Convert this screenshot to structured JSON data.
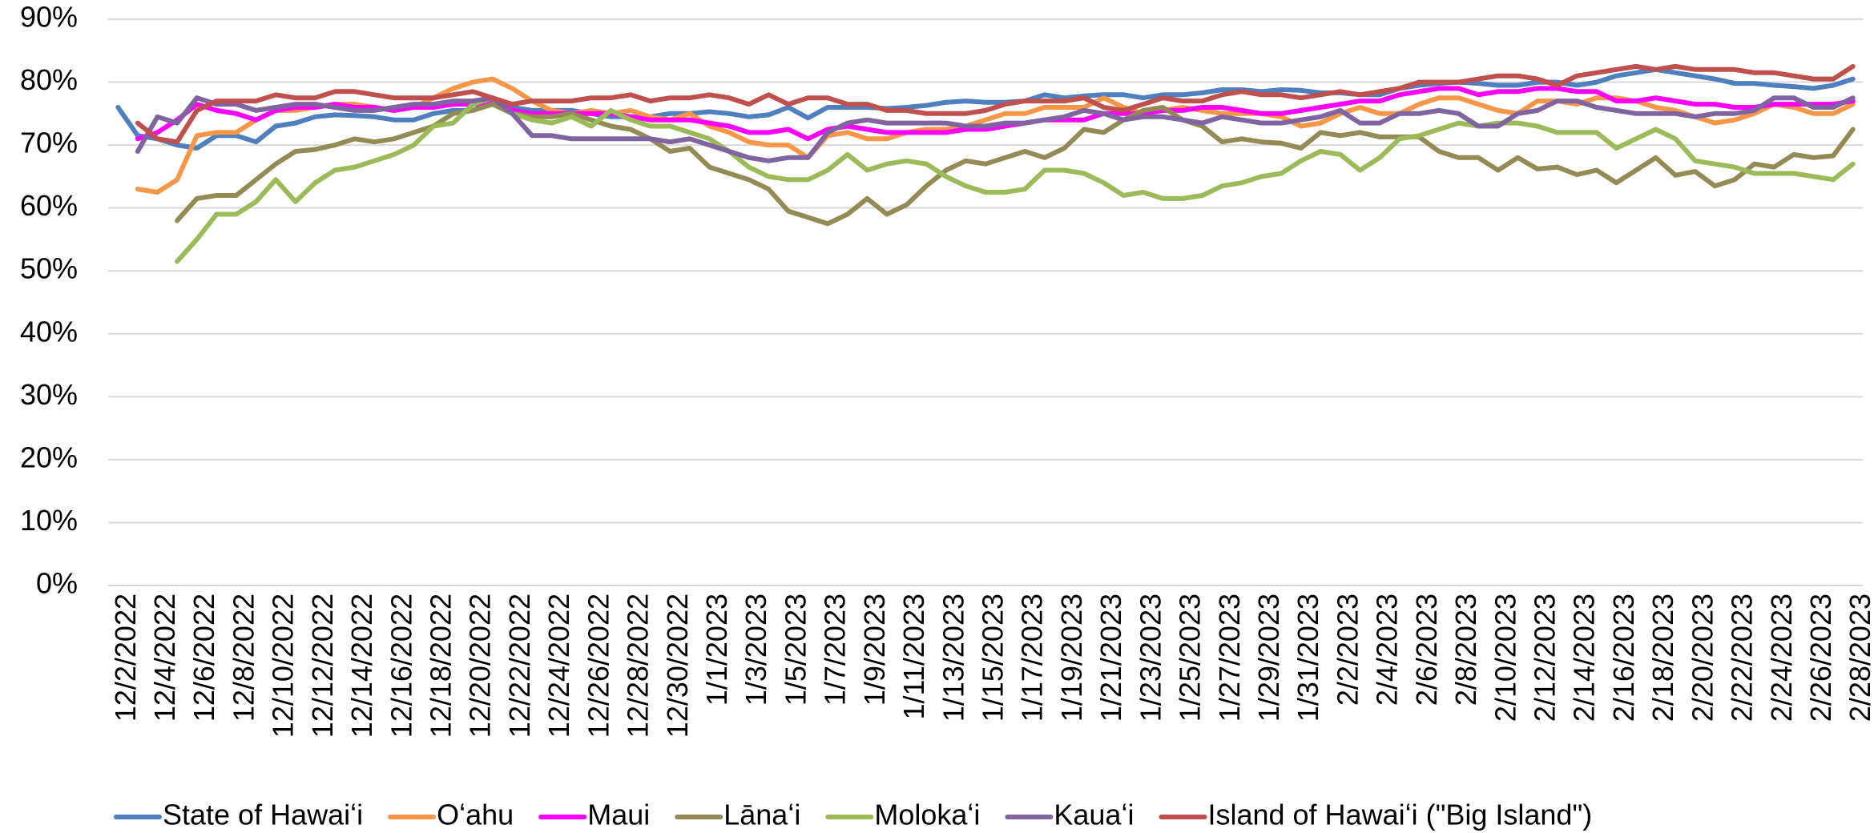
{
  "chart_data": {
    "type": "line",
    "categories": [
      "12/2/2022",
      null,
      "12/4/2022",
      null,
      "12/6/2022",
      null,
      "12/8/2022",
      null,
      "12/10/2022",
      null,
      "12/12/2022",
      null,
      "12/14/2022",
      null,
      "12/16/2022",
      null,
      "12/18/2022",
      null,
      "12/20/2022",
      null,
      "12/22/2022",
      null,
      "12/24/2022",
      null,
      "12/26/2022",
      null,
      "12/28/2022",
      null,
      "12/30/2022",
      null,
      "1/1/2023",
      null,
      "1/3/2023",
      null,
      "1/5/2023",
      null,
      "1/7/2023",
      null,
      "1/9/2023",
      null,
      "1/11/2023",
      null,
      "1/13/2023",
      null,
      "1/15/2023",
      null,
      "1/17/2023",
      null,
      "1/19/2023",
      null,
      "1/21/2023",
      null,
      "1/23/2023",
      null,
      "1/25/2023",
      null,
      "1/27/2023",
      null,
      "1/29/2023",
      null,
      "1/31/2023",
      null,
      "2/2/2023",
      null,
      "2/4/2023",
      null,
      "2/6/2023",
      null,
      "2/8/2023",
      null,
      "2/10/2023",
      null,
      "2/12/2023",
      null,
      "2/14/2023",
      null,
      "2/16/2023",
      null,
      "2/18/2023",
      null,
      "2/20/2023",
      null,
      "2/22/2023",
      null,
      "2/24/2023",
      null,
      "2/26/2023",
      null,
      "2/28/2023"
    ],
    "series": [
      {
        "name": "State of Hawaiʻi",
        "color": "#4e7fbf",
        "values": [
          76,
          71.5,
          71,
          70,
          69.5,
          71.5,
          71.5,
          70.5,
          73,
          73.5,
          74.5,
          74.8,
          74.7,
          74.5,
          74,
          74,
          75,
          75.5,
          75.5,
          77,
          76,
          75.5,
          75.5,
          75.5,
          75,
          74.5,
          74.5,
          74.5,
          75,
          75,
          75.3,
          75,
          74.5,
          74.8,
          76,
          74.3,
          76,
          76,
          76,
          75.8,
          76,
          76.3,
          76.8,
          77,
          76.8,
          76.8,
          77,
          78,
          77.5,
          77.8,
          78,
          78,
          77.5,
          78,
          78,
          78.3,
          78.8,
          78.8,
          78.5,
          78.8,
          78.7,
          78.3,
          78.3,
          78,
          78,
          79,
          79.5,
          79.8,
          80,
          79.8,
          79.5,
          79.5,
          80,
          80,
          79.5,
          80,
          81,
          81.5,
          82,
          81.5,
          81,
          80.5,
          79.8,
          79.8,
          79.5,
          79.3,
          79,
          79.5,
          80.5
        ]
      },
      {
        "name": "Oʻahu",
        "color": "#f79646",
        "values": [
          null,
          63,
          62.5,
          64.5,
          71.5,
          72,
          72,
          74,
          75.5,
          75.5,
          76,
          76.5,
          76.5,
          76,
          75.5,
          76,
          77.5,
          79,
          80,
          80.5,
          79,
          77,
          75.5,
          75,
          75.5,
          75,
          75.5,
          74.5,
          74,
          75,
          73,
          72,
          70.5,
          70,
          70,
          68,
          71.5,
          72,
          71,
          71,
          72,
          72.5,
          72.5,
          73,
          74,
          75,
          75,
          76,
          76,
          76,
          77.5,
          76,
          75,
          75.5,
          76,
          75.5,
          75,
          75,
          75,
          74.5,
          73,
          73.5,
          75,
          76,
          75,
          75,
          76.5,
          77.5,
          77.5,
          76.5,
          75.5,
          75,
          77,
          77,
          76.5,
          77.5,
          77.5,
          77,
          76,
          75.5,
          74.5,
          73.5,
          74,
          75,
          76.5,
          76,
          75,
          75,
          76.5
        ]
      },
      {
        "name": "Maui",
        "color": "#ff00ff",
        "values": [
          null,
          71,
          72,
          74,
          76.5,
          75.5,
          75,
          74,
          75.5,
          76,
          76,
          76.5,
          76,
          76,
          75.5,
          76,
          76,
          76.5,
          76.5,
          77,
          75.5,
          75,
          75,
          75,
          75,
          75,
          74.5,
          74,
          74,
          74,
          73.5,
          73,
          72,
          72,
          72.5,
          71,
          72.5,
          73,
          72.5,
          72,
          72,
          72,
          72,
          72.5,
          72.5,
          73,
          73.5,
          74,
          74,
          74,
          75,
          75,
          75,
          75.5,
          75.5,
          76,
          76,
          75.5,
          75,
          75,
          75.5,
          76,
          76.5,
          77,
          77,
          78,
          78.5,
          79,
          79,
          78,
          78.5,
          78.5,
          79,
          79,
          78.5,
          78.5,
          77,
          77,
          77.5,
          77,
          76.5,
          76.5,
          76,
          76,
          76.5,
          76.5,
          76.5,
          76.5,
          77
        ]
      },
      {
        "name": "Lānaʻi",
        "color": "#948a54",
        "values": [
          null,
          null,
          null,
          58,
          61.5,
          62,
          62,
          64.5,
          67,
          69,
          69.3,
          70,
          71,
          70.5,
          71,
          72,
          73,
          75,
          75.5,
          76.5,
          75,
          74.5,
          74.5,
          75,
          74,
          73,
          72.5,
          71,
          69,
          69.5,
          66.5,
          65.5,
          64.5,
          63,
          59.5,
          58.5,
          57.5,
          59,
          61.5,
          59,
          60.5,
          63.5,
          66,
          67.5,
          67,
          68,
          69,
          68,
          69.5,
          72.5,
          72,
          74,
          75.5,
          76,
          74,
          73,
          70.5,
          71,
          70.5,
          70.3,
          69.5,
          72,
          71.5,
          72,
          71.3,
          71.3,
          71.3,
          69,
          68,
          68,
          66,
          68,
          66.2,
          66.5,
          65.3,
          66,
          64,
          66,
          68,
          65.2,
          65.8,
          63.5,
          64.5,
          67,
          66.5,
          68.5,
          68,
          68.3,
          72.5
        ]
      },
      {
        "name": "Molokaʻi",
        "color": "#9bbb59",
        "values": [
          null,
          null,
          null,
          51.5,
          55,
          59,
          59,
          61,
          64.5,
          61,
          64,
          66,
          66.5,
          67.5,
          68.5,
          70,
          73,
          73.5,
          76.5,
          77.5,
          75,
          74,
          73.5,
          74.5,
          73,
          75.5,
          74,
          73,
          73,
          72,
          71,
          69,
          66.5,
          65,
          64.5,
          64.5,
          66,
          68.5,
          66,
          67,
          67.5,
          67,
          65,
          63.5,
          62.5,
          62.5,
          63,
          66,
          66,
          65.5,
          64,
          62,
          62.5,
          61.5,
          61.5,
          62,
          63.5,
          64,
          65,
          65.5,
          67.5,
          69,
          68.5,
          66,
          68,
          71,
          71.5,
          72.5,
          73.5,
          73,
          73.5,
          73.5,
          73,
          72,
          72,
          72,
          69.5,
          71,
          72.5,
          71,
          67.5,
          67,
          66.5,
          65.5,
          65.5,
          65.5,
          65,
          64.5,
          67
        ]
      },
      {
        "name": "Kauaʻi",
        "color": "#8064a2",
        "values": [
          null,
          69,
          74.5,
          73.5,
          77.5,
          76.5,
          76.5,
          75.5,
          76,
          76.5,
          76.5,
          76,
          75.5,
          75.5,
          76,
          76.5,
          76.5,
          77,
          77,
          77.5,
          75,
          71.5,
          71.5,
          71,
          71,
          71,
          71,
          71,
          70.5,
          71,
          70,
          69,
          68,
          67.5,
          68,
          68,
          72,
          73.5,
          74,
          73.5,
          73.5,
          73.5,
          73.5,
          73,
          73,
          73.5,
          73.5,
          74,
          74.5,
          75.5,
          75,
          74,
          74.5,
          74.5,
          74,
          73.5,
          74.5,
          74,
          73.5,
          73.5,
          74,
          74.5,
          75.5,
          73.5,
          73.5,
          75,
          75,
          75.5,
          75,
          73,
          73,
          75,
          75.5,
          77,
          77,
          76,
          75.5,
          75,
          75,
          75,
          74.5,
          75,
          75,
          75.5,
          77.5,
          77.5,
          76,
          76,
          77.5
        ]
      },
      {
        "name": "Island of Hawaiʻi (\"Big Island\")",
        "color": "#c0504d",
        "values": [
          null,
          73.5,
          71,
          70.5,
          75.5,
          77,
          77,
          77,
          78,
          77.5,
          77.5,
          78.5,
          78.5,
          78,
          77.5,
          77.5,
          77.5,
          78,
          78.5,
          77.5,
          76.5,
          77,
          77,
          77,
          77.5,
          77.5,
          78,
          77,
          77.5,
          77.5,
          78,
          77.5,
          76.5,
          78,
          76.5,
          77.5,
          77.5,
          76.5,
          76.5,
          75.5,
          75.5,
          75,
          75,
          75,
          75.5,
          76.5,
          77,
          77,
          77,
          77.5,
          76,
          75.5,
          76.5,
          77.5,
          77,
          77,
          78,
          78.5,
          78,
          78,
          77.5,
          78,
          78.5,
          78,
          78.5,
          79,
          80,
          80,
          80,
          80.5,
          81,
          81,
          80.5,
          79.5,
          81,
          81.5,
          82,
          82.5,
          82,
          82.5,
          82,
          82,
          82,
          81.5,
          81.5,
          81,
          80.5,
          80.5,
          82.5
        ]
      }
    ],
    "ylim": [
      0,
      90
    ],
    "yticks": [
      {
        "value": 0,
        "label": "0%"
      },
      {
        "value": 10,
        "label": "10%"
      },
      {
        "value": 20,
        "label": "20%"
      },
      {
        "value": 30,
        "label": "30%"
      },
      {
        "value": 40,
        "label": "40%"
      },
      {
        "value": 50,
        "label": "50%"
      },
      {
        "value": 60,
        "label": "60%"
      },
      {
        "value": 70,
        "label": "70%"
      },
      {
        "value": 80,
        "label": "80%"
      },
      {
        "value": 90,
        "label": "90%"
      }
    ],
    "grid": true,
    "legend": "bottom"
  }
}
